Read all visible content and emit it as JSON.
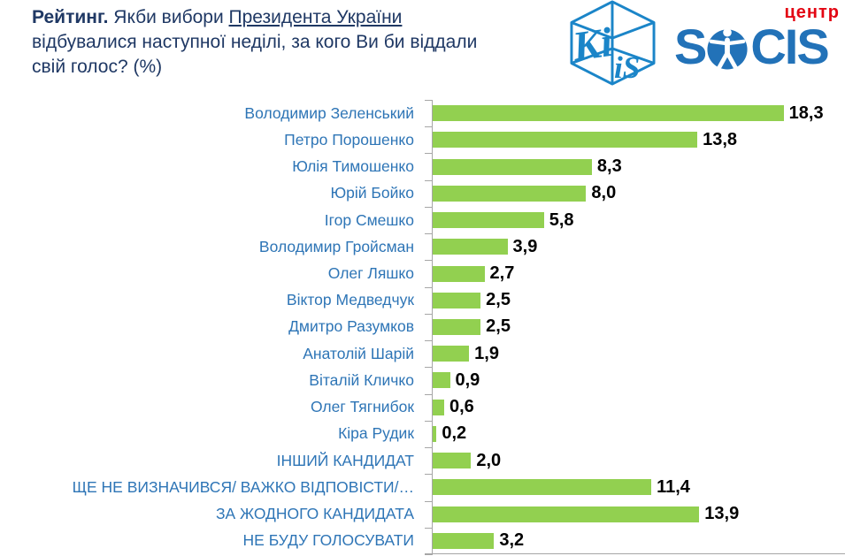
{
  "header": {
    "title": {
      "lead_bold": "Рейтинг.",
      "line1_mid": " Якби вибори ",
      "line1_underlined": "Президента України",
      "line2": "відбувалися наступної неділі, за кого Ви би віддали",
      "line3": "свій голос? (%)"
    },
    "logos": {
      "kiis": {
        "icon": "kiis-cube-logo",
        "text_left": "Ki",
        "text_right": "iS",
        "color": "#1B85C8"
      },
      "socis": {
        "icon": "socis-logo",
        "top_label": "центр",
        "prefix": "S",
        "suffix": "CIS",
        "blue": "#2272B8",
        "red": "#E30613"
      }
    }
  },
  "colors": {
    "title_text": "#1F3864",
    "category_label": "#2E75B6",
    "bar": "#92D050",
    "value_label": "#000000",
    "axis": "#A6A6A6"
  },
  "chart_data": {
    "type": "bar",
    "orientation": "horizontal",
    "title": "Рейтинг. Якби вибори Президента України відбувалися наступної неділі, за кого Ви би віддали свій голос? (%)",
    "unit": "%",
    "categories": [
      "Володимир Зеленський",
      "Петро Порошенко",
      "Юлія Тимошенко",
      "Юрій Бойко",
      "Ігор Смешко",
      "Володимир Гройсман",
      "Олег Ляшко",
      "Віктор Медведчук",
      "Дмитро Разумков",
      "Анатолій Шарій",
      "Віталій Кличко",
      "Олег Тягнибок",
      "Кіра Рудик",
      "ІНШИЙ КАНДИДАТ",
      "ЩЕ НЕ ВИЗНАЧИВСЯ/ ВАЖКО ВІДПОВІСТИ/…",
      "ЗА ЖОДНОГО КАНДИДАТА",
      "НЕ БУДУ ГОЛОСУВАТИ"
    ],
    "values": [
      18.3,
      13.8,
      8.3,
      8.0,
      5.8,
      3.9,
      2.7,
      2.5,
      2.5,
      1.9,
      0.9,
      0.6,
      0.2,
      2.0,
      11.4,
      13.9,
      3.2
    ],
    "value_labels": [
      "18,3",
      "13,8",
      "8,3",
      "8,0",
      "5,8",
      "3,9",
      "2,7",
      "2,5",
      "2,5",
      "1,9",
      "0,9",
      "0,6",
      "0,2",
      "2,0",
      "11,4",
      "13,9",
      "3,2"
    ],
    "xlim": [
      0,
      21.5
    ],
    "grid": false,
    "legend": false,
    "bar_color": "#92D050",
    "category_label_color": "#2E75B6",
    "value_label_color": "#000000",
    "axis_color": "#A6A6A6"
  }
}
